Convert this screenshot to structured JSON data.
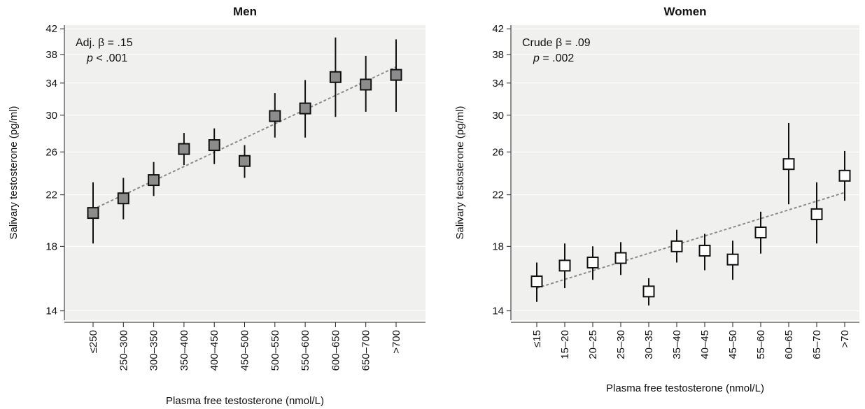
{
  "chart_data": [
    {
      "type": "errorbar",
      "title": "Men",
      "x_label": "Plasma free testosterone (nmol/L)",
      "y_label": "Salivary testosterone (pg/ml)",
      "stat_label": "Adj. β = .15",
      "p_symbol": "p",
      "p_text": "< .001",
      "categories": [
        "≤250",
        "250–300",
        "300–350",
        "350–400",
        "400–450",
        "450–500",
        "500–550",
        "550–600",
        "600–650",
        "650–700",
        ">700"
      ],
      "values": [
        20.5,
        21.7,
        23.3,
        26.3,
        26.7,
        25.1,
        29.9,
        30.8,
        34.8,
        33.8,
        35.1
      ],
      "lower": [
        18.2,
        20.0,
        21.9,
        24.7,
        24.8,
        23.5,
        27.5,
        27.5,
        29.8,
        30.4,
        30.4
      ],
      "upper": [
        23.1,
        23.5,
        25.0,
        28.0,
        28.5,
        26.7,
        32.7,
        34.4,
        40.6,
        37.8,
        40.3
      ],
      "trend": [
        20.8,
        36.2
      ],
      "color": "#8c8c8c",
      "log_y": true,
      "ylim": [
        13.5,
        42.6
      ],
      "yticks": [
        14,
        18,
        22,
        26,
        30,
        34,
        38,
        42
      ],
      "grid": true
    },
    {
      "type": "errorbar",
      "title": "Women",
      "x_label": "Plasma free testosterone (nmol/L)",
      "y_label": "Salivary testosterone (pg/ml)",
      "stat_label": "Crude β = .09",
      "p_symbol": "p",
      "p_text": "= .002",
      "categories": [
        "≤15",
        "15–20",
        "20–25",
        "25–30",
        "30–35",
        "35–40",
        "40–45",
        "45–50",
        "55–60",
        "60–65",
        "65–70",
        ">70"
      ],
      "values": [
        15.7,
        16.7,
        16.9,
        17.2,
        15.1,
        18.0,
        17.7,
        17.1,
        19.0,
        24.8,
        20.4,
        23.7
      ],
      "lower": [
        14.5,
        15.3,
        15.8,
        16.1,
        14.3,
        16.9,
        16.4,
        15.8,
        17.5,
        21.2,
        18.2,
        21.5
      ],
      "upper": [
        16.9,
        18.2,
        18.0,
        18.3,
        15.9,
        19.2,
        18.9,
        18.4,
        20.6,
        29.1,
        23.1,
        26.1
      ],
      "trend": [
        15.3,
        22.2
      ],
      "color": "#ffffff",
      "log_y": true,
      "ylim": [
        13.5,
        42.6
      ],
      "yticks": [
        14,
        18,
        22,
        26,
        30,
        34,
        38,
        42
      ],
      "grid": true
    }
  ]
}
